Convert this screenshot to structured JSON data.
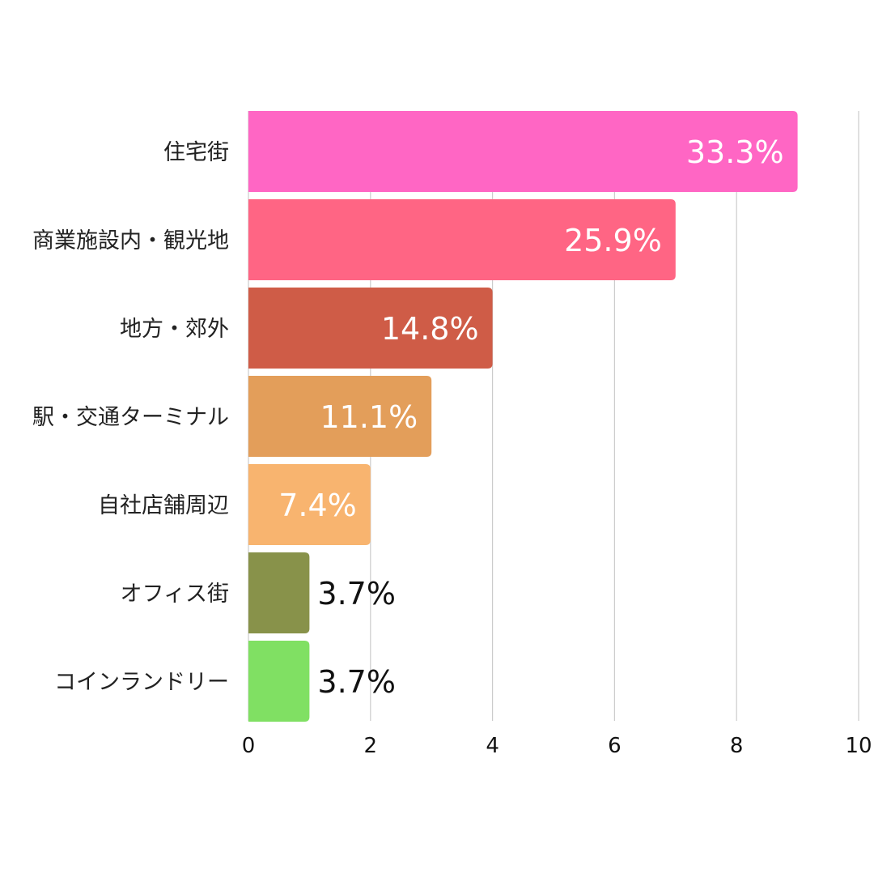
{
  "chart_data": {
    "type": "bar",
    "orientation": "horizontal",
    "title": "",
    "xlabel": "",
    "ylabel": "",
    "categories": [
      "住宅街",
      "商業施設内・観光地",
      "地方・郊外",
      "駅・交通ターミナル",
      "自社店舗周辺",
      "オフィス街",
      "コインランドリー"
    ],
    "values": [
      9,
      7,
      4,
      3,
      2,
      1,
      1
    ],
    "data_labels": [
      "33.3%",
      "25.9%",
      "14.8%",
      "11.1%",
      "7.4%",
      "3.7%",
      "3.7%"
    ],
    "colors": [
      "#ff66c4",
      "#ff6584",
      "#cf5c47",
      "#e39e5a",
      "#f8b46f",
      "#88924a",
      "#80e063"
    ],
    "xlim": [
      0,
      10
    ],
    "x_ticks": [
      0,
      2,
      4,
      6,
      8,
      10
    ],
    "grid": true,
    "legend": "none"
  }
}
